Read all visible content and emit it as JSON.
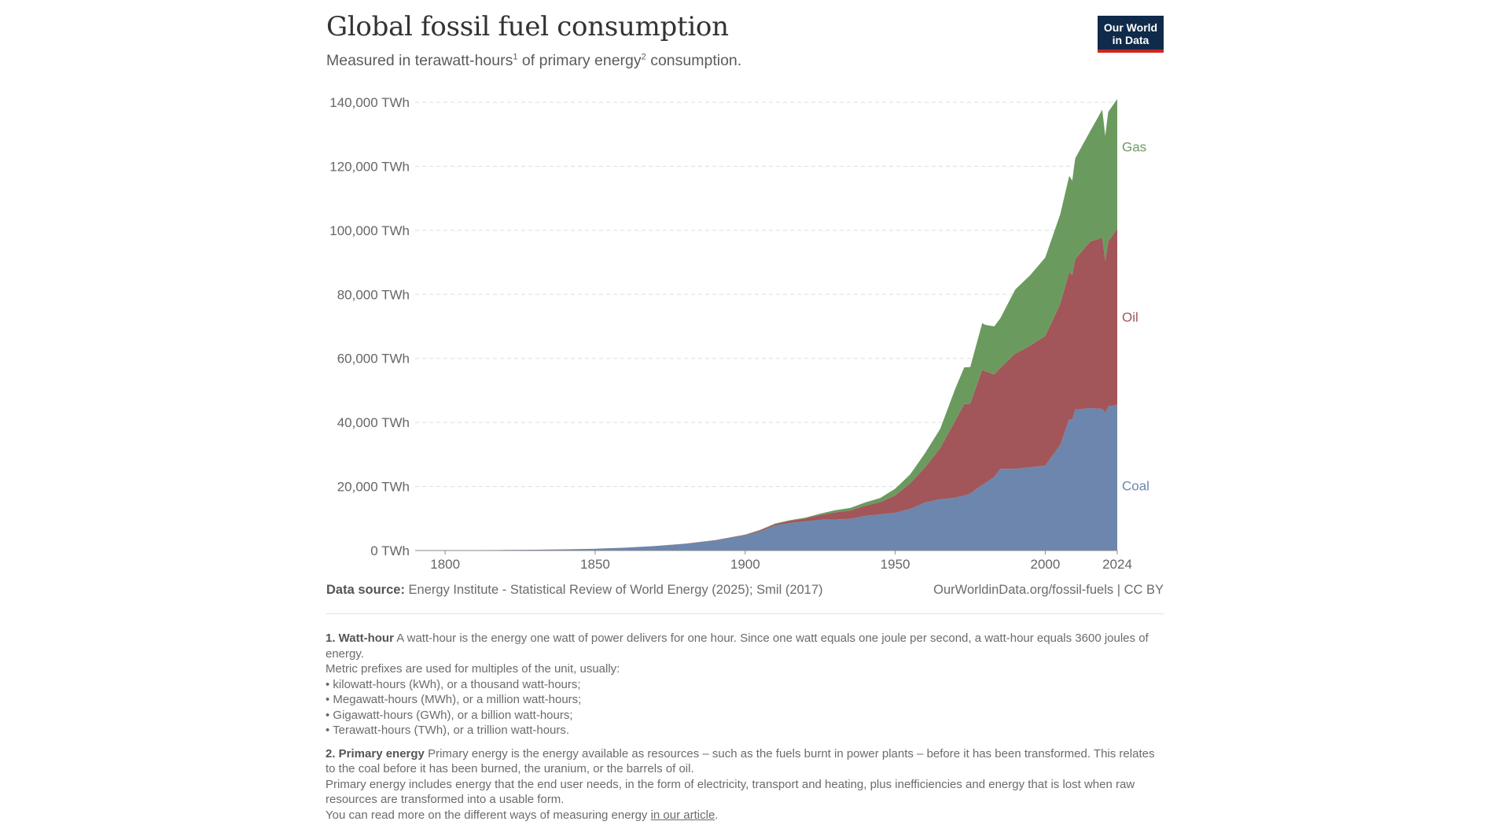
{
  "header": {
    "title": "Global fossil fuel consumption",
    "subtitle_a": "Measured in terawatt-hours",
    "subtitle_sup1": "1",
    "subtitle_b": " of primary energy",
    "subtitle_sup2": "2",
    "subtitle_c": " consumption.",
    "logo_line1": "Our World",
    "logo_line2": "in Data"
  },
  "chart_data": {
    "type": "area",
    "stacked": true,
    "x": [
      1800,
      1810,
      1820,
      1830,
      1840,
      1850,
      1860,
      1870,
      1880,
      1890,
      1900,
      1905,
      1910,
      1915,
      1920,
      1925,
      1930,
      1935,
      1940,
      1945,
      1950,
      1955,
      1960,
      1965,
      1970,
      1973,
      1975,
      1979,
      1980,
      1983,
      1985,
      1990,
      1995,
      2000,
      2005,
      2008,
      2009,
      2010,
      2015,
      2019,
      2020,
      2021,
      2024
    ],
    "series": [
      {
        "name": "Coal",
        "color": "#6d86ad",
        "values": [
          97,
          130,
          170,
          250,
          370,
          560,
          900,
          1400,
          2100,
          3150,
          4700,
          6000,
          7800,
          8600,
          9100,
          9600,
          9700,
          9900,
          10800,
          11300,
          11800,
          13000,
          15000,
          16000,
          16500,
          17200,
          17800,
          20500,
          21000,
          23000,
          25500,
          25500,
          26000,
          26500,
          33000,
          41000,
          41000,
          44000,
          44500,
          44200,
          43000,
          45000,
          45500
        ]
      },
      {
        "name": "Oil",
        "color": "#a25659",
        "values": [
          0,
          0,
          0,
          0,
          0,
          0,
          1,
          6,
          35,
          90,
          200,
          350,
          490,
          700,
          900,
          1500,
          2200,
          2600,
          3200,
          3800,
          5400,
          8000,
          11000,
          16000,
          24000,
          28500,
          28000,
          36000,
          35000,
          32000,
          31500,
          36000,
          38000,
          40500,
          44000,
          46000,
          45000,
          47000,
          52000,
          53500,
          47500,
          51500,
          55000
        ]
      },
      {
        "name": "Gas",
        "color": "#6b9a5f",
        "values": [
          0,
          0,
          0,
          0,
          0,
          0,
          0,
          0,
          5,
          25,
          60,
          90,
          150,
          200,
          250,
          400,
          700,
          800,
          1000,
          1300,
          2100,
          2800,
          4500,
          6000,
          10000,
          11500,
          11500,
          14500,
          14500,
          15000,
          15500,
          20000,
          22000,
          24500,
          28000,
          30000,
          29500,
          31500,
          34500,
          40000,
          39000,
          40500,
          40500
        ]
      }
    ],
    "xlim": [
      1790,
      2024
    ],
    "ylim": [
      0,
      140000
    ],
    "y_ticks": [
      "0 TWh",
      "20,000 TWh",
      "40,000 TWh",
      "60,000 TWh",
      "80,000 TWh",
      "100,000 TWh",
      "120,000 TWh",
      "140,000 TWh"
    ],
    "x_ticks": [
      "1800",
      "1850",
      "1900",
      "1950",
      "2000",
      "2024"
    ],
    "grid": "horizontal dashed",
    "legend": "labels at right end"
  },
  "footer": {
    "source_label": "Data source:",
    "source_text": " Energy Institute - Statistical Review of World Energy (2025); Smil (2017)",
    "credit": "OurWorldinData.org/fossil-fuels | CC BY"
  },
  "notes": {
    "n1_head": "1. Watt-hour",
    "n1_text": " A watt-hour is the energy one watt of power delivers for one hour. Since one watt equals one joule per second, a watt-hour equals 3600 joules of energy.",
    "n1_line2": "Metric prefixes are used for multiples of the unit, usually:",
    "n1_bullets": [
      "• kilowatt-hours (kWh), or a thousand watt-hours;",
      "• Megawatt-hours (MWh), or a million watt-hours;",
      "• Gigawatt-hours (GWh), or a billion watt-hours;",
      "• Terawatt-hours (TWh), or a trillion watt-hours."
    ],
    "n2_head": "2. Primary energy",
    "n2_text": " Primary energy is the energy available as resources – such as the fuels burnt in power plants – before it has been transformed. This relates to the coal before it has been burned, the uranium, or the barrels of oil.",
    "n2_line2": "Primary energy includes energy that the end user needs, in the form of electricity, transport and heating, plus inefficiencies and energy that is lost when raw resources are transformed into a usable form.",
    "n2_line3_a": "You can read more on the different ways of measuring energy ",
    "n2_link": "in our article",
    "n2_line3_b": "."
  }
}
